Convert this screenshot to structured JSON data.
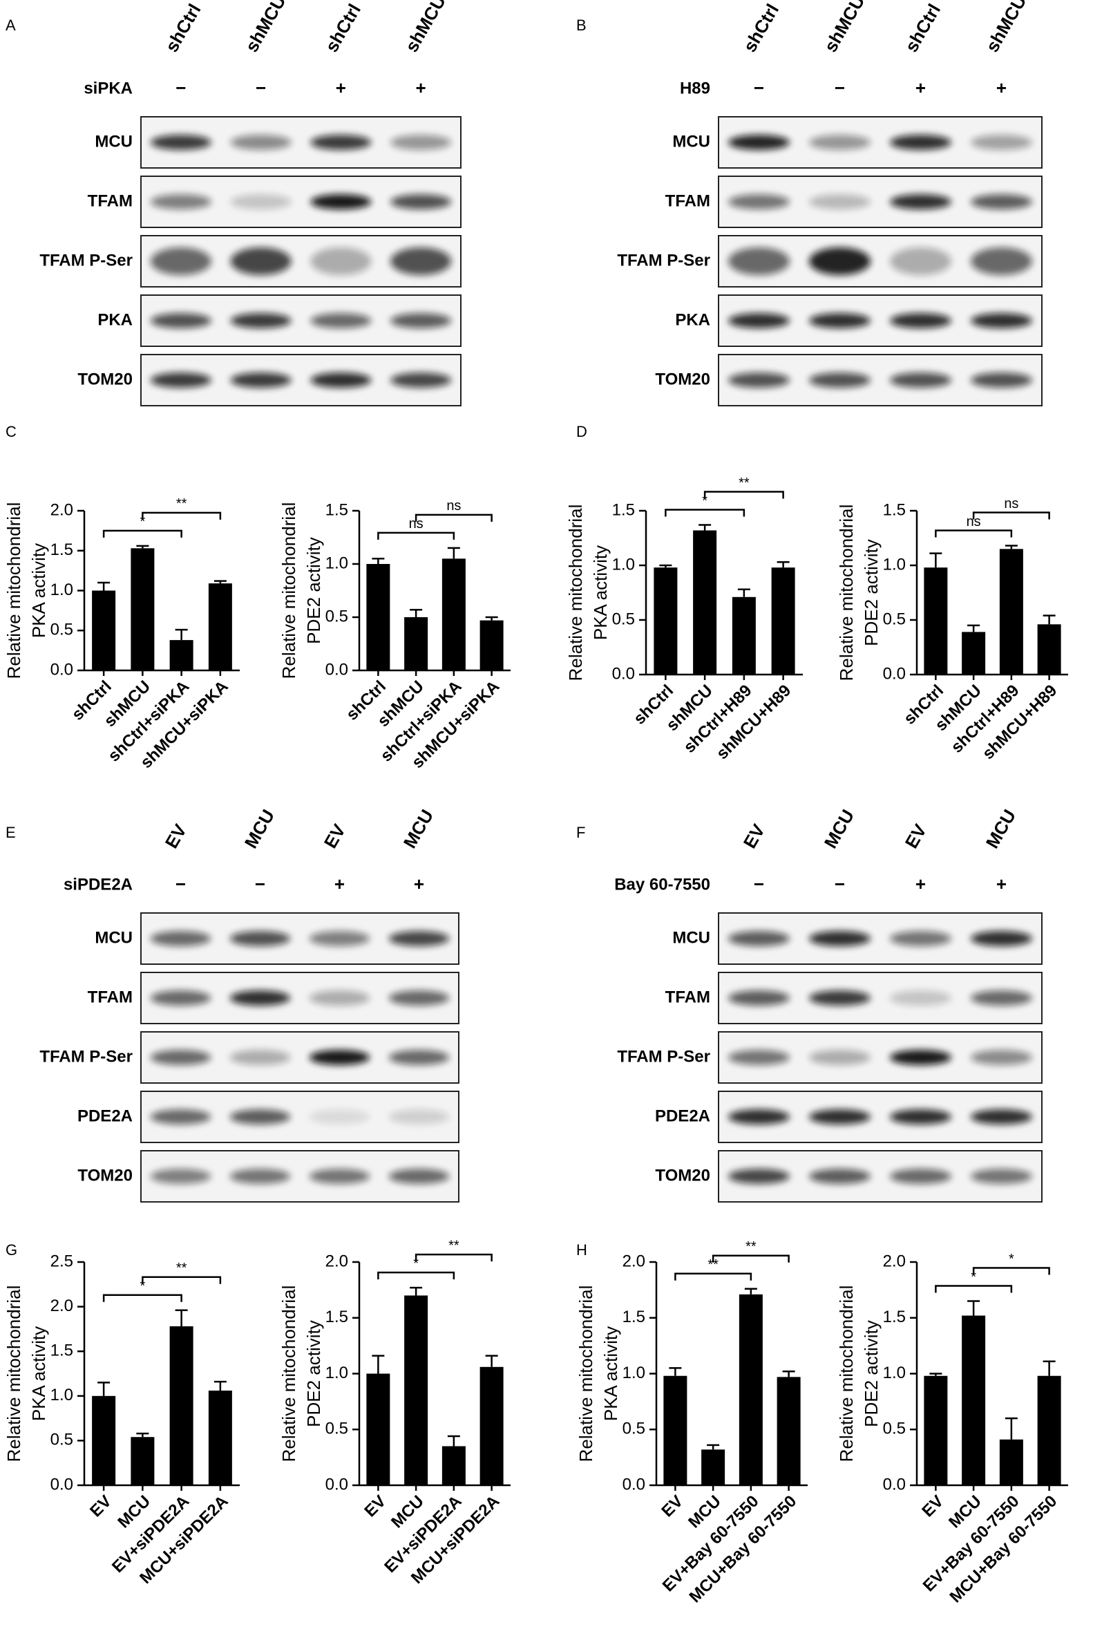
{
  "blots": [
    {
      "label": "A",
      "lanes": [
        "shCtrl",
        "shMCU",
        "shCtrl",
        "shMCU"
      ],
      "treatment": {
        "name": "siPKA",
        "signs": [
          "−",
          "−",
          "+",
          "+"
        ]
      },
      "rows": [
        "MCU",
        "TFAM",
        "TFAM P-Ser",
        "PKA",
        "TOM20"
      ]
    },
    {
      "label": "B",
      "lanes": [
        "shCtrl",
        "shMCU",
        "shCtrl",
        "shMCU"
      ],
      "treatment": {
        "name": "H89",
        "signs": [
          "−",
          "−",
          "+",
          "+"
        ]
      },
      "rows": [
        "MCU",
        "TFAM",
        "TFAM P-Ser",
        "PKA",
        "TOM20"
      ]
    },
    {
      "label": "E",
      "lanes": [
        "EV",
        "MCU",
        "EV",
        "MCU"
      ],
      "treatment": {
        "name": "siPDE2A",
        "signs": [
          "−",
          "−",
          "+",
          "+"
        ]
      },
      "rows": [
        "MCU",
        "TFAM",
        "TFAM P-Ser",
        "PDE2A",
        "TOM20"
      ]
    },
    {
      "label": "F",
      "lanes": [
        "EV",
        "MCU",
        "EV",
        "MCU"
      ],
      "treatment": {
        "name": "Bay 60-7550",
        "signs": [
          "−",
          "−",
          "+",
          "+"
        ]
      },
      "rows": [
        "MCU",
        "TFAM",
        "TFAM P-Ser",
        "PDE2A",
        "TOM20"
      ]
    }
  ],
  "chart_data": [
    {
      "type": "bar",
      "label": "C",
      "ylabel": [
        "Relative mitochondrial",
        "PKA activity"
      ],
      "categories": [
        "shCtrl",
        "shMCU",
        "shCtrl+siPKA",
        "shMCU+siPKA"
      ],
      "values": [
        1.0,
        1.53,
        0.38,
        1.09
      ],
      "errors": [
        0.1,
        0.03,
        0.13,
        0.03
      ],
      "color": "#000000",
      "ylim": [
        0,
        2
      ],
      "yticks": [
        {
          "value": 0,
          "label": "0.0"
        },
        0.5,
        {
          "value": 1,
          "label": "1.0"
        },
        1.5,
        {
          "value": 2,
          "label": "2.0"
        }
      ],
      "annotations": [
        {
          "text": "*",
          "between": [
            "shCtrl",
            "shCtrl+siPKA"
          ]
        },
        {
          "text": "**",
          "between": [
            "shMCU",
            "shMCU+siPKA"
          ]
        }
      ]
    },
    {
      "type": "bar",
      "ylabel": [
        "Relative mitochondrial",
        "PDE2 activity"
      ],
      "categories": [
        "shCtrl",
        "shMCU",
        "shCtrl+siPKA",
        "shMCU+siPKA"
      ],
      "values": [
        1.0,
        0.5,
        1.05,
        0.47
      ],
      "errors": [
        0.05,
        0.07,
        0.1,
        0.03
      ],
      "color": "#000000",
      "ylim": [
        0,
        1.5
      ],
      "yticks": [
        {
          "value": 0,
          "label": "0.0"
        },
        0.5,
        {
          "value": 1,
          "label": "1.0"
        },
        1.5
      ],
      "annotations": [
        {
          "text": "ns",
          "between": [
            "shCtrl",
            "shCtrl+siPKA"
          ]
        },
        {
          "text": "ns",
          "between": [
            "shMCU",
            "shMCU+siPKA"
          ]
        }
      ]
    },
    {
      "type": "bar",
      "label": "D",
      "ylabel": [
        "Relative mitochondrial",
        "PKA activity"
      ],
      "categories": [
        "shCtrl",
        "shMCU",
        "shCtrl+H89",
        "shMCU+H89"
      ],
      "values": [
        0.98,
        1.32,
        0.71,
        0.98
      ],
      "errors": [
        0.02,
        0.05,
        0.07,
        0.05
      ],
      "color": "#000000",
      "ylim": [
        0,
        1.5
      ],
      "yticks": [
        {
          "value": 0,
          "label": "0.0"
        },
        0.5,
        {
          "value": 1,
          "label": "1.0"
        },
        1.5
      ],
      "annotations": [
        {
          "text": "*",
          "between": [
            "shCtrl",
            "shCtrl+H89"
          ]
        },
        {
          "text": "**",
          "between": [
            "shMCU",
            "shMCU+H89"
          ]
        }
      ]
    },
    {
      "type": "bar",
      "ylabel": [
        "Relative mitochondrial",
        "PDE2 activity"
      ],
      "categories": [
        "shCtrl",
        "shMCU",
        "shCtrl+H89",
        "shMCU+H89"
      ],
      "values": [
        0.98,
        0.39,
        1.15,
        0.46
      ],
      "errors": [
        0.13,
        0.06,
        0.03,
        0.08
      ],
      "color": "#000000",
      "ylim": [
        0,
        1.5
      ],
      "yticks": [
        {
          "value": 0,
          "label": "0.0"
        },
        0.5,
        {
          "value": 1,
          "label": "1.0"
        },
        1.5
      ],
      "annotations": [
        {
          "text": "ns",
          "between": [
            "shCtrl",
            "shCtrl+H89"
          ]
        },
        {
          "text": "ns",
          "between": [
            "shMCU",
            "shMCU+H89"
          ]
        }
      ]
    },
    {
      "type": "bar",
      "label": "G",
      "ylabel": [
        "Relative mitochondrial",
        "PKA activity"
      ],
      "categories": [
        "EV",
        "MCU",
        "EV+siPDE2A",
        "MCU+siPDE2A"
      ],
      "values": [
        1.0,
        0.54,
        1.78,
        1.06
      ],
      "errors": [
        0.15,
        0.04,
        0.18,
        0.1
      ],
      "color": "#000000",
      "ylim": [
        0,
        2.5
      ],
      "yticks": [
        {
          "value": 0,
          "label": "0.0"
        },
        0.5,
        {
          "value": 1,
          "label": "1.0"
        },
        1.5,
        {
          "value": 2,
          "label": "2.0"
        },
        2.5
      ],
      "annotations": [
        {
          "text": "*",
          "between": [
            "EV",
            "EV+siPDE2A"
          ]
        },
        {
          "text": "**",
          "between": [
            "MCU",
            "MCU+siPDE2A"
          ]
        }
      ]
    },
    {
      "type": "bar",
      "ylabel": [
        "Relative mitochondrial",
        "PDE2 activity"
      ],
      "categories": [
        "EV",
        "MCU",
        "EV+siPDE2A",
        "MCU+siPDE2A"
      ],
      "values": [
        1.0,
        1.7,
        0.35,
        1.06
      ],
      "errors": [
        0.16,
        0.07,
        0.09,
        0.1
      ],
      "color": "#000000",
      "ylim": [
        0,
        2
      ],
      "yticks": [
        {
          "value": 0,
          "label": "0.0"
        },
        0.5,
        {
          "value": 1,
          "label": "1.0"
        },
        1.5,
        {
          "value": 2,
          "label": "2.0"
        }
      ],
      "annotations": [
        {
          "text": "*",
          "between": [
            "EV",
            "EV+siPDE2A"
          ]
        },
        {
          "text": "**",
          "between": [
            "MCU",
            "MCU+siPDE2A"
          ]
        }
      ]
    },
    {
      "type": "bar",
      "label": "H",
      "ylabel": [
        "Relative mitochondrial",
        "PKA activity"
      ],
      "categories": [
        "EV",
        "MCU",
        "EV+Bay 60-7550",
        "MCU+Bay 60-7550"
      ],
      "values": [
        0.98,
        0.32,
        1.71,
        0.97
      ],
      "errors": [
        0.07,
        0.04,
        0.05,
        0.05
      ],
      "color": "#000000",
      "ylim": [
        0,
        2
      ],
      "yticks": [
        {
          "value": 0,
          "label": "0.0"
        },
        0.5,
        {
          "value": 1,
          "label": "1.0"
        },
        1.5,
        {
          "value": 2,
          "label": "2.0"
        }
      ],
      "annotations": [
        {
          "text": "**",
          "between": [
            "EV",
            "EV+Bay 60-7550"
          ]
        },
        {
          "text": "**",
          "between": [
            "MCU",
            "MCU+Bay 60-7550"
          ]
        }
      ]
    },
    {
      "type": "bar",
      "ylabel": [
        "Relative mitochondrial",
        "PDE2 activity"
      ],
      "categories": [
        "EV",
        "MCU",
        "EV+Bay 60-7550",
        "MCU+Bay 60-7550"
      ],
      "values": [
        0.98,
        1.52,
        0.41,
        0.98
      ],
      "errors": [
        0.02,
        0.13,
        0.19,
        0.13
      ],
      "color": "#000000",
      "ylim": [
        0,
        2
      ],
      "yticks": [
        {
          "value": 0,
          "label": "0.0"
        },
        0.5,
        {
          "value": 1,
          "label": "1.0"
        },
        1.5,
        {
          "value": 2,
          "label": "2.0"
        }
      ],
      "annotations": [
        {
          "text": "*",
          "between": [
            "EV",
            "EV+Bay 60-7550"
          ]
        },
        {
          "text": "*",
          "between": [
            "MCU",
            "MCU+Bay 60-7550"
          ]
        }
      ]
    }
  ]
}
